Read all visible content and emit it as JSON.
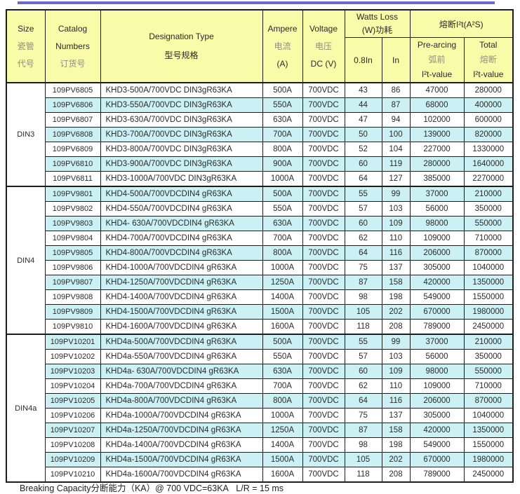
{
  "page": {
    "accent_line_color": "#6a6ace",
    "header_bg": "#f9fba8",
    "stripe_bg": "#cbf1f4"
  },
  "table": {
    "header": {
      "size": [
        "Size",
        "瓷管",
        "代号"
      ],
      "catalog": [
        "Catalog",
        "Numbers",
        "订货号"
      ],
      "designation": [
        "Designation Type",
        "型号规格"
      ],
      "ampere": [
        "Ampere",
        "电流",
        "(A)"
      ],
      "voltage": [
        "Voltage",
        "电压",
        "DC (V)"
      ],
      "watts_group": [
        "Watts Loss",
        "(W)功耗"
      ],
      "i2t_group": "熔断I²t(A²S)",
      "watts_sub": [
        "0.8In",
        "In"
      ],
      "prearcing": [
        "Pre-arcing",
        "弧前",
        "I²t-value"
      ],
      "total": [
        "Total",
        "熔断",
        "I²t-value"
      ]
    },
    "sections": [
      {
        "size": "DIN3",
        "first_shaded": false,
        "rows": [
          [
            "109PV6805",
            "KHD3-500A/700VDC DIN3gR63KA",
            "500A",
            "700VDC",
            "43",
            "86",
            "47000",
            "280000"
          ],
          [
            "109PV6806",
            "KHD3-550A/700VDC DIN3gR63KA",
            "550A",
            "700VDC",
            "44",
            "87",
            "68000",
            "400000"
          ],
          [
            "109PV6807",
            "KHD3-630A/700VDC DIN3gR63KA",
            "630A",
            "700VDC",
            "47",
            "94",
            "102000",
            "600000"
          ],
          [
            "109PV6808",
            "KHD3-700A/700VDC DIN3gR63KA",
            "700A",
            "700VDC",
            "50",
            "100",
            "139000",
            "820000"
          ],
          [
            "109PV6809",
            "KHD3-800A/700VDC DIN3gR63KA",
            "800A",
            "700VDC",
            "52",
            "104",
            "227000",
            "1330000"
          ],
          [
            "109PV6810",
            "KHD3-900A/700VDC DIN3gR63KA",
            "900A",
            "700VDC",
            "60",
            "119",
            "280000",
            "1640000"
          ],
          [
            "109PV6811",
            "KHD3-1000A/700VDC DIN3gR63KA",
            "1000A",
            "700VDC",
            "64",
            "127",
            "385000",
            "2270000"
          ]
        ]
      },
      {
        "size": "DIN4",
        "first_shaded": true,
        "rows": [
          [
            "109PV9801",
            "KHD4-500A/700VDCDIN4 gR63KA",
            "500A",
            "700VDC",
            "55",
            "99",
            "37000",
            "210000"
          ],
          [
            "109PV9802",
            "KHD4-550A/700VDCDIN4 gR63KA",
            "550A",
            "700VDC",
            "57",
            "103",
            "56000",
            "350000"
          ],
          [
            "109PV9803",
            "KHD4- 630A/700VDCDIN4 gR63KA",
            "630A",
            "700VDC",
            "60",
            "109",
            "98000",
            "550000"
          ],
          [
            "109PV9804",
            "KHD4-700A/700VDCDIN4 gR63KA",
            "700A",
            "700VDC",
            "62",
            "110",
            "109000",
            "710000"
          ],
          [
            "109PV9805",
            "KHD4-800A/700VDCDIN4 gR63KA",
            "800A",
            "700VDC",
            "64",
            "116",
            "206000",
            "870000"
          ],
          [
            "109PV9806",
            "KHD4-1000A/700VDCDIN4 gR63KA",
            "1000A",
            "700VDC",
            "75",
            "137",
            "305000",
            "1040000"
          ],
          [
            "109PV9807",
            "KHD4-1250A/700VDCDIN4 gR63KA",
            "1250A",
            "700VDC",
            "87",
            "158",
            "420000",
            "1350000"
          ],
          [
            "109PV9808",
            "KHD4-1400A/700VDCDIN4 gR63KA",
            "1400A",
            "700VDC",
            "98",
            "198",
            "549000",
            "1550000"
          ],
          [
            "109PV9809",
            "KHD4-1500A/700VDCDIN4 gR63KA",
            "1500A",
            "700VDC",
            "105",
            "202",
            "670000",
            "1980000"
          ],
          [
            "109PV9810",
            "KHD4-1600A/700VDCDIN4 gR63KA",
            "1600A",
            "700VDC",
            "118",
            "208",
            "789000",
            "2450000"
          ]
        ]
      },
      {
        "size": "DIN4a",
        "first_shaded": true,
        "rows": [
          [
            "109PV10201",
            "KHD4a-500A/700VDCDIN4 gR63KA",
            "500A",
            "700VDC",
            "55",
            "99",
            "37000",
            "210000"
          ],
          [
            "109PV10202",
            "KHD4a-550A/700VDCDIN4 gR63KA",
            "550A",
            "700VDC",
            "57",
            "103",
            "56000",
            "350000"
          ],
          [
            "109PV10203",
            "KHD4a- 630A/700VDCDIN4 gR63KA",
            "630A",
            "700VDC",
            "60",
            "109",
            "98000",
            "550000"
          ],
          [
            "109PV10204",
            "KHD4a-700A/700VDCDIN4 gR63KA",
            "700A",
            "700VDC",
            "62",
            "110",
            "109000",
            "710000"
          ],
          [
            "109PV10205",
            "KHD4a-800A/700VDCDIN4 gR63KA",
            "800A",
            "700VDC",
            "64",
            "116",
            "206000",
            "870000"
          ],
          [
            "109PV10206",
            "KHD4a-1000A/700VDCDIN4 gR63KA",
            "1000A",
            "700VDC",
            "75",
            "137",
            "305000",
            "1040000"
          ],
          [
            "109PV10207",
            "KHD4a-1250A/700VDCDIN4 gR63KA",
            "1250A",
            "700VDC",
            "87",
            "158",
            "420000",
            "1350000"
          ],
          [
            "109PV10208",
            "KHD4a-1400A/700VDCDIN4 gR63KA",
            "1400A",
            "700VDC",
            "98",
            "198",
            "549000",
            "1550000"
          ],
          [
            "109PV10209",
            "KHD4a-1500A/700VDCDIN4 gR63KA",
            "1500A",
            "700VDC",
            "105",
            "202",
            "670000",
            "1980000"
          ],
          [
            "109PV10210",
            "KHD4a-1600A/700VDCDIN4 gR63KA",
            "1600A",
            "700VDC",
            "118",
            "208",
            "789000",
            "2450000"
          ]
        ]
      }
    ]
  },
  "footer": {
    "text": "Breaking Capacity分断能力（KA）@ 700 VDC=63KA   L/R = 15 ms"
  }
}
